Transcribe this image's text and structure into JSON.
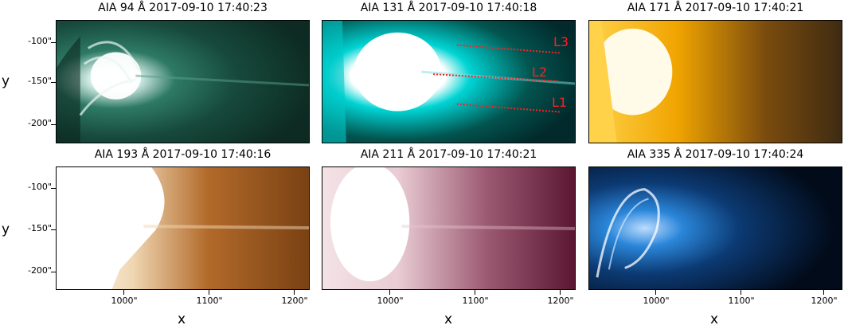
{
  "panels": [
    {
      "title": "AIA 94 Å 2017-09-10 17:40:23",
      "colors": [
        "#eaf6f3",
        "#1f6a57",
        "#0d2b22"
      ]
    },
    {
      "title": "AIA 131 Å 2017-09-10 17:40:18",
      "colors": [
        "#ffffff",
        "#00c8c8",
        "#02292b"
      ]
    },
    {
      "title": "AIA 171 Å 2017-09-10 17:40:21",
      "colors": [
        "#fff7cc",
        "#f0a400",
        "#3f2b12"
      ]
    },
    {
      "title": "AIA 193 Å 2017-09-10 17:40:16",
      "colors": [
        "#ffffff",
        "#d8a86e",
        "#7a4113"
      ]
    },
    {
      "title": "AIA 211 Å 2017-09-10 17:40:21",
      "colors": [
        "#ffffff",
        "#c99aa5",
        "#5a1731"
      ]
    },
    {
      "title": "AIA 335 Å 2017-09-10 17:40:24",
      "colors": [
        "#ffffff",
        "#1e72c6",
        "#020b1a"
      ]
    }
  ],
  "axes": {
    "xlabel": "x",
    "ylabel": "y",
    "xticks": [
      "1000\"",
      "1100\"",
      "1200\""
    ],
    "yticks": [
      "-100\"",
      "-150\"",
      "-200\""
    ]
  },
  "slit_labels": [
    "L3",
    "L2",
    "L1"
  ],
  "slit_color": "#ff2020"
}
